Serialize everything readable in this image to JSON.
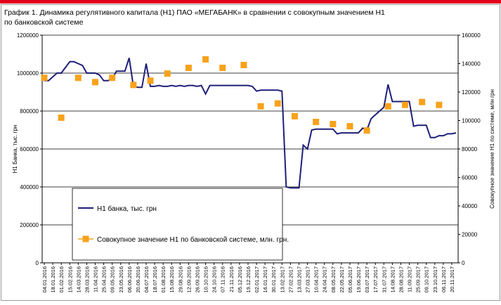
{
  "chart_data": {
    "type": "line",
    "title": [
      "График 1. Динамика регулятивного капитала (Н1) ПАО «МЕГАБАНК» в сравнении с совокупным значением Н1",
      "по банковской системе"
    ],
    "ylabel": "Н1 Банка, тыс. грн",
    "y2label": "Совокупное значение Н1 по системе, млн грн",
    "categories": [
      "04.01.2016",
      null,
      "18.01.2016",
      null,
      "01.02.2016",
      null,
      "15.02.2016",
      null,
      "14.03.2016",
      null,
      "28.03.2016",
      null,
      "11.04.2016",
      null,
      "25.04.2016",
      null,
      "09.05.2016",
      null,
      "23.05.2016",
      null,
      "06.06.2016",
      null,
      "20.06.2016",
      null,
      "04.07.2016",
      null,
      "18.07.2016",
      null,
      "01.08.2016",
      null,
      "15.08.2016",
      null,
      "29.08.2016",
      null,
      "12.09.2016",
      null,
      "26.09.2016",
      null,
      "10.10.2016",
      null,
      "24.10.2016",
      null,
      "07.11.2016",
      null,
      "21.11.2016",
      null,
      "05.12.2016",
      null,
      "19.12.2016",
      null,
      "02.01.2017",
      null,
      "16.01.2017",
      null,
      "30.01.2017",
      null,
      "13.02.2017",
      null,
      "27.02.2017",
      null,
      "13.03.2017",
      null,
      "27.03.2017",
      null,
      "10.04.2017",
      null,
      "24.04.2017",
      null,
      "08.05.2017",
      null,
      "22.05.2017",
      null,
      "05.06.2017",
      null,
      "19.06.2017",
      null,
      "03.07.2017",
      null,
      "17.07.2017",
      null,
      "31.07.2017",
      null,
      "14.08.2017",
      null,
      "28.08.2017",
      null,
      "11.09.2017",
      null,
      "25.09.2017",
      null,
      "09.10.2017",
      null,
      "23.10.2017",
      null,
      "06.11.2017",
      null,
      "20.11.2017",
      null
    ],
    "series": [
      {
        "name": "Н1 банка, тыс. грн",
        "color": "#1f1f7a",
        "kind": "line",
        "values": [
          960000,
          960000,
          980000,
          1000000,
          1000000,
          1030000,
          1060000,
          1060000,
          1050000,
          1040000,
          1000000,
          1000000,
          1000000,
          990000,
          960000,
          960000,
          970000,
          1010000,
          1010000,
          1010000,
          1080000,
          930000,
          925000,
          925000,
          1050000,
          930000,
          930000,
          935000,
          930000,
          930000,
          935000,
          930000,
          935000,
          930000,
          935000,
          935000,
          930000,
          935000,
          890000,
          935000,
          935000,
          935000,
          935000,
          935000,
          935000,
          935000,
          935000,
          935000,
          935000,
          930000,
          905000,
          910000,
          910000,
          910000,
          910000,
          910000,
          905000,
          400000,
          395000,
          395000,
          395000,
          620000,
          600000,
          700000,
          705000,
          705000,
          705000,
          705000,
          705000,
          680000,
          685000,
          685000,
          685000,
          685000,
          685000,
          710000,
          700000,
          760000,
          780000,
          800000,
          820000,
          940000,
          850000,
          850000,
          850000,
          850000,
          850000,
          720000,
          725000,
          725000,
          725000,
          660000,
          660000,
          670000,
          670000,
          680000,
          680000,
          685000
        ]
      },
      {
        "name": "Совокупное значение Н1 по банковской системе, млн. грн.",
        "color": "#f7a21b",
        "kind": "marker",
        "axis": "y2",
        "values": [
          130000,
          null,
          null,
          null,
          102000,
          null,
          null,
          null,
          130000,
          null,
          null,
          null,
          127000,
          null,
          null,
          null,
          130000,
          null,
          null,
          null,
          null,
          125000,
          null,
          null,
          null,
          128000,
          null,
          null,
          null,
          133000,
          null,
          null,
          null,
          null,
          137000,
          null,
          null,
          null,
          143000,
          null,
          null,
          null,
          137000,
          null,
          null,
          null,
          null,
          139000,
          null,
          null,
          null,
          110000,
          null,
          null,
          null,
          112000,
          null,
          null,
          null,
          103000,
          null,
          null,
          null,
          null,
          99000,
          null,
          null,
          null,
          97500,
          null,
          null,
          null,
          96000,
          null,
          null,
          null,
          93000,
          null,
          null,
          null,
          null,
          110000,
          null,
          null,
          null,
          111000,
          null,
          null,
          null,
          113000,
          null,
          null,
          null,
          111000,
          null,
          null,
          null,
          null
        ]
      }
    ],
    "ylim": [
      0,
      1200000
    ],
    "yticks": [
      0,
      200000,
      400000,
      600000,
      800000,
      1000000,
      1200000
    ],
    "y2lim": [
      0,
      160000
    ],
    "y2ticks": [
      0,
      20000,
      40000,
      60000,
      80000,
      100000,
      120000,
      140000,
      160000
    ],
    "grid": true,
    "legend": "lower-left"
  }
}
